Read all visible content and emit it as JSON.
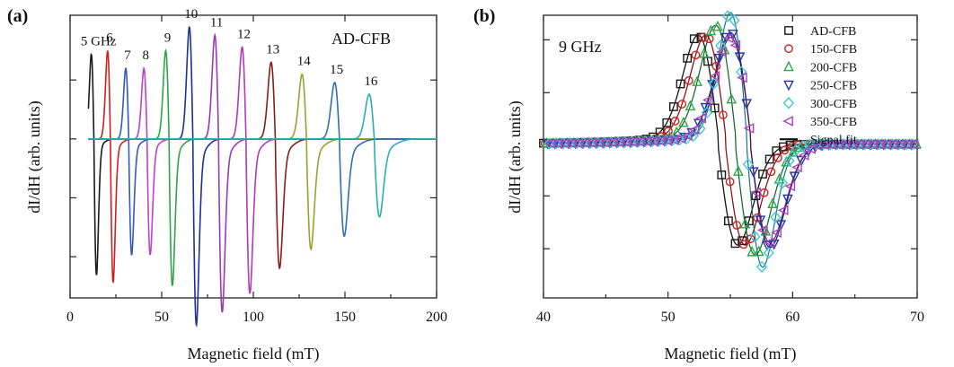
{
  "chart_data": [
    {
      "type": "line",
      "panel_label": "(a)",
      "annotation": "AD-CFB",
      "xlabel": "Magnetic field (mT)",
      "ylabel": "dI/dH (arb. units)",
      "xlim": [
        0,
        200
      ],
      "ylim": [
        -1.35,
        1.05
      ],
      "x_ticks": [
        0,
        50,
        100,
        150,
        200
      ],
      "grid": false,
      "series": [
        {
          "label": "5 GHz",
          "x0": 13,
          "amp": 0.72,
          "w": 1.4,
          "tail": 0.08,
          "color": "#1a1a1a"
        },
        {
          "label": "6",
          "x0": 22,
          "amp": 0.75,
          "w": 1.5,
          "tail": 0.1,
          "color": "#cc2020"
        },
        {
          "label": "7",
          "x0": 32,
          "amp": 0.6,
          "w": 1.6,
          "tail": 0.12,
          "color": "#3456c8"
        },
        {
          "label": "8",
          "x0": 42,
          "amp": 0.6,
          "w": 1.7,
          "tail": 0.12,
          "color": "#c040c8"
        },
        {
          "label": "9",
          "x0": 54,
          "amp": 0.75,
          "w": 1.8,
          "tail": 0.15,
          "color": "#2ea54a"
        },
        {
          "label": "10",
          "x0": 67,
          "amp": 0.95,
          "w": 1.9,
          "tail": 0.15,
          "color": "#1e2f9a"
        },
        {
          "label": "11",
          "x0": 81,
          "amp": 0.88,
          "w": 2.0,
          "tail": 0.16,
          "color": "#9a3ab0"
        },
        {
          "label": "12",
          "x0": 96,
          "amp": 0.78,
          "w": 2.1,
          "tail": 0.17,
          "color": "#b03ab8"
        },
        {
          "label": "13",
          "x0": 112,
          "amp": 0.65,
          "w": 2.3,
          "tail": 0.18,
          "color": "#8a1c1c"
        },
        {
          "label": "14",
          "x0": 129,
          "amp": 0.55,
          "w": 2.4,
          "tail": 0.2,
          "color": "#9aa030"
        },
        {
          "label": "15",
          "x0": 147,
          "amp": 0.48,
          "w": 2.6,
          "tail": 0.22,
          "color": "#2f6fb0"
        },
        {
          "label": "16",
          "x0": 166,
          "amp": 0.38,
          "w": 2.8,
          "tail": 0.25,
          "color": "#28b0b0"
        }
      ]
    },
    {
      "type": "line",
      "panel_label": "(b)",
      "annotation": "9 GHz",
      "xlabel": "Magnetic field (mT)",
      "ylabel": "dI/dH (arb. units)",
      "xlim": [
        40,
        70
      ],
      "ylim": [
        -1.25,
        1.05
      ],
      "x_ticks": [
        40,
        50,
        60,
        70
      ],
      "grid": false,
      "legend_position": "top-right",
      "series": [
        {
          "name": "AD-CFB",
          "marker": "square",
          "color": "#1a1a1a",
          "x0": 54.0,
          "amp": 0.82,
          "w": 1.6
        },
        {
          "name": "150-CFB",
          "marker": "circle",
          "color": "#d42020",
          "x0": 54.6,
          "amp": 0.82,
          "w": 1.6
        },
        {
          "name": "200-CFB",
          "marker": "triangle-up",
          "color": "#2aa84a",
          "x0": 55.4,
          "amp": 0.9,
          "w": 1.6
        },
        {
          "name": "250-CFB",
          "marker": "triangle-down",
          "color": "#2035a8",
          "x0": 56.6,
          "amp": 0.84,
          "w": 1.6
        },
        {
          "name": "300-CFB",
          "marker": "diamond",
          "color": "#40c8d8",
          "x0": 56.3,
          "amp": 1.0,
          "w": 1.3
        },
        {
          "name": "350-CFB",
          "marker": "triangle-left",
          "color": "#b040c0",
          "x0": 56.6,
          "amp": 0.8,
          "w": 1.6
        },
        {
          "name": "Signal fit",
          "marker": "line",
          "color": "#111111"
        }
      ]
    }
  ]
}
